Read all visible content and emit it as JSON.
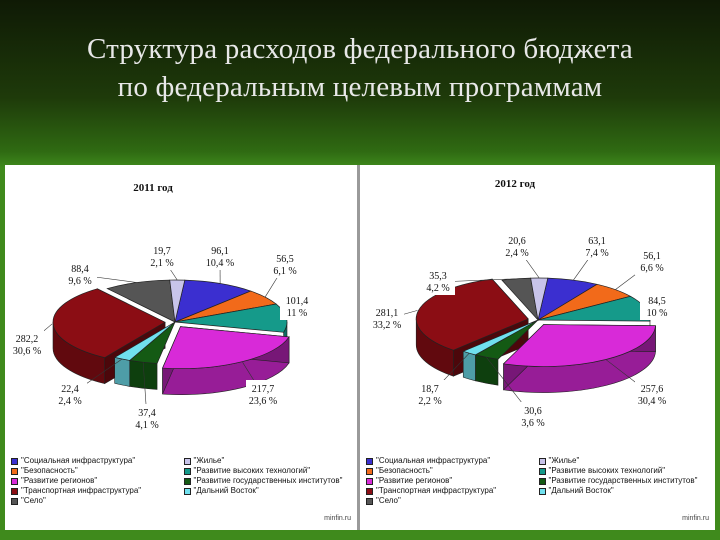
{
  "title": {
    "line1": "Структура расходов федерального бюджета",
    "line2": "по федеральным целевым программам"
  },
  "colors": {
    "Социальная инфраструктура": "#3b2fd0",
    "Безопасность": "#f26a1a",
    "Развитие регионов": "#d82ad8",
    "Транспортная инфраструктура": "#8b0d14",
    "Село": "#555555",
    "Жилье": "#c8c4ea",
    "Развитие высоких технологий": "#159a8a",
    "Развитие государственных институтов": "#145a14",
    "Дальний Восток": "#70e0ee"
  },
  "legend": [
    {
      "label": "\"Социальная инфраструктура\"",
      "key": "Социальная инфраструктура"
    },
    {
      "label": "\"Жилье\"",
      "key": "Жилье"
    },
    {
      "label": "\"Безопасность\"",
      "key": "Безопасность"
    },
    {
      "label": "\"Развитие высоких технологий\"",
      "key": "Развитие высоких технологий"
    },
    {
      "label": "\"Развитие регионов\"",
      "key": "Развитие регионов"
    },
    {
      "label": "\"Развитие государственных институтов\"",
      "key": "Развитие государственных институтов"
    },
    {
      "label": "\"Транспортная инфраструктура\"",
      "key": "Транспортная инфраструктура"
    },
    {
      "label": "\"Дальний Восток\"",
      "key": "Дальний Восток"
    },
    {
      "label": "\"Село\"",
      "key": "Село"
    }
  ],
  "chart_data": [
    {
      "type": "pie",
      "title": "2011 год",
      "slices": [
        {
          "name": "Социальная инфраструктура",
          "value": 96.1,
          "percent": "10,4 %",
          "value_label": "96,1"
        },
        {
          "name": "Безопасность",
          "value": 56.5,
          "percent": "6,1 %",
          "value_label": "56,5"
        },
        {
          "name": "Развитие высоких технологий",
          "value": 101.4,
          "percent": "11 %",
          "value_label": "101,4"
        },
        {
          "name": "Развитие регионов",
          "value": 217.7,
          "percent": "23,6 %",
          "value_label": "217,7"
        },
        {
          "name": "Развитие государственных институтов",
          "value": 37.4,
          "percent": "4,1 %",
          "value_label": "37,4"
        },
        {
          "name": "Дальний Восток",
          "value": 22.4,
          "percent": "2,4 %",
          "value_label": "22,4"
        },
        {
          "name": "Транспортная инфраструктура",
          "value": 282.2,
          "percent": "30,6 %",
          "value_label": "282,2"
        },
        {
          "name": "Село",
          "value": 88.4,
          "percent": "9,6 %",
          "value_label": "88,4"
        },
        {
          "name": "Жилье",
          "value": 19.7,
          "percent": "2,1 %",
          "value_label": "19,7"
        }
      ],
      "source": "minfin.ru"
    },
    {
      "type": "pie",
      "title": "2012 год",
      "slices": [
        {
          "name": "Социальная инфраструктура",
          "value": 63.1,
          "percent": "7,4 %",
          "value_label": "63,1"
        },
        {
          "name": "Безопасность",
          "value": 56.1,
          "percent": "6,6 %",
          "value_label": "56,1"
        },
        {
          "name": "Развитие высоких технологий",
          "value": 84.5,
          "percent": "10 %",
          "value_label": "84,5"
        },
        {
          "name": "Развитие регионов",
          "value": 257.6,
          "percent": "30,4 %",
          "value_label": "257,6"
        },
        {
          "name": "Развитие государственных институтов",
          "value": 30.6,
          "percent": "3,6 %",
          "value_label": "30,6"
        },
        {
          "name": "Дальний Восток",
          "value": 18.7,
          "percent": "2,2 %",
          "value_label": "18,7"
        },
        {
          "name": "Транспортная инфраструктура",
          "value": 281.1,
          "percent": "33,2 %",
          "value_label": "281,1"
        },
        {
          "name": "Село",
          "value": 35.3,
          "percent": "4,2 %",
          "value_label": "35,3"
        },
        {
          "name": "Жилье",
          "value": 20.6,
          "percent": "2,4 %",
          "value_label": "20,6"
        }
      ],
      "source": "minfin.ru"
    }
  ]
}
